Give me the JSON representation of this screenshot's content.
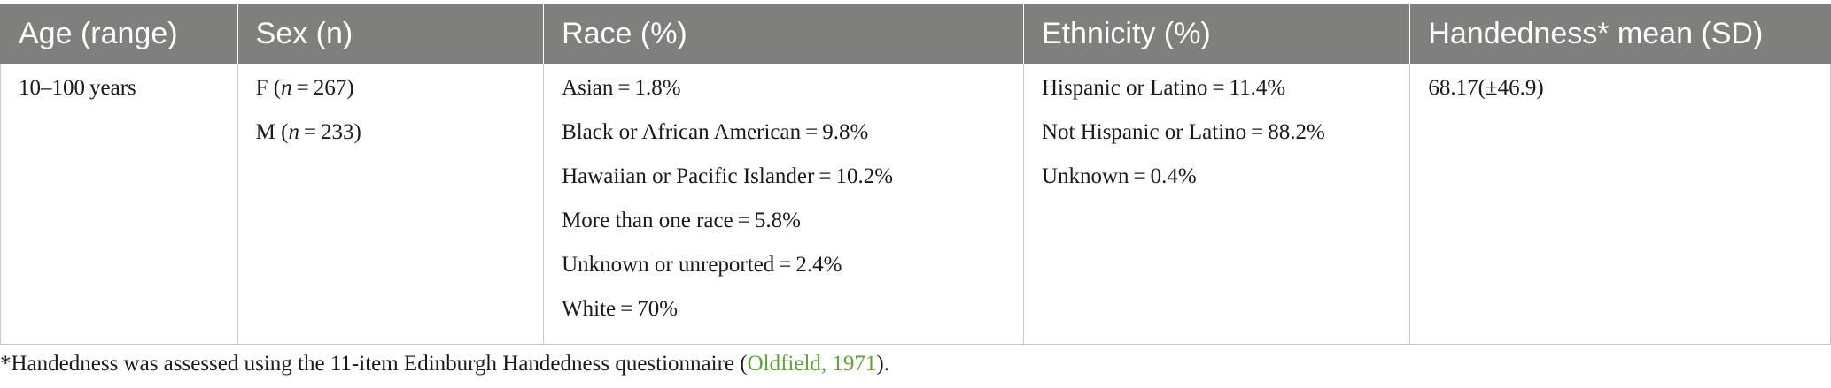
{
  "headers": [
    "Age (range)",
    "Sex (n)",
    "Race (%)",
    "Ethnicity (%)",
    "Handedness* mean (SD)"
  ],
  "age": [
    "10–100 years"
  ],
  "sex": [
    {
      "letter": "F",
      "open": " (",
      "n": "n",
      "value": " = 267)"
    },
    {
      "letter": "M",
      "open": " (",
      "n": "n",
      "value": " = 233)"
    }
  ],
  "race": [
    "Asian = 1.8%",
    "Black or African American = 9.8%",
    "Hawaiian or Pacific Islander = 10.2%",
    "More than one race = 5.8%",
    "Unknown or unreported = 2.4%",
    "White = 70%"
  ],
  "ethnicity": [
    "Hispanic or Latino = 11.4%",
    "Not Hispanic or Latino = 88.2%",
    "Unknown = 0.4%"
  ],
  "handedness": [
    "68.17(±46.9)"
  ],
  "footnote": {
    "text": "*Handedness was assessed using the 11-item Edinburgh Handedness questionnaire (",
    "citation": "Oldfield, 1971",
    "end": ")."
  },
  "colors": {
    "header_bg": "#7f7f7e",
    "citation": "#5aa832"
  }
}
